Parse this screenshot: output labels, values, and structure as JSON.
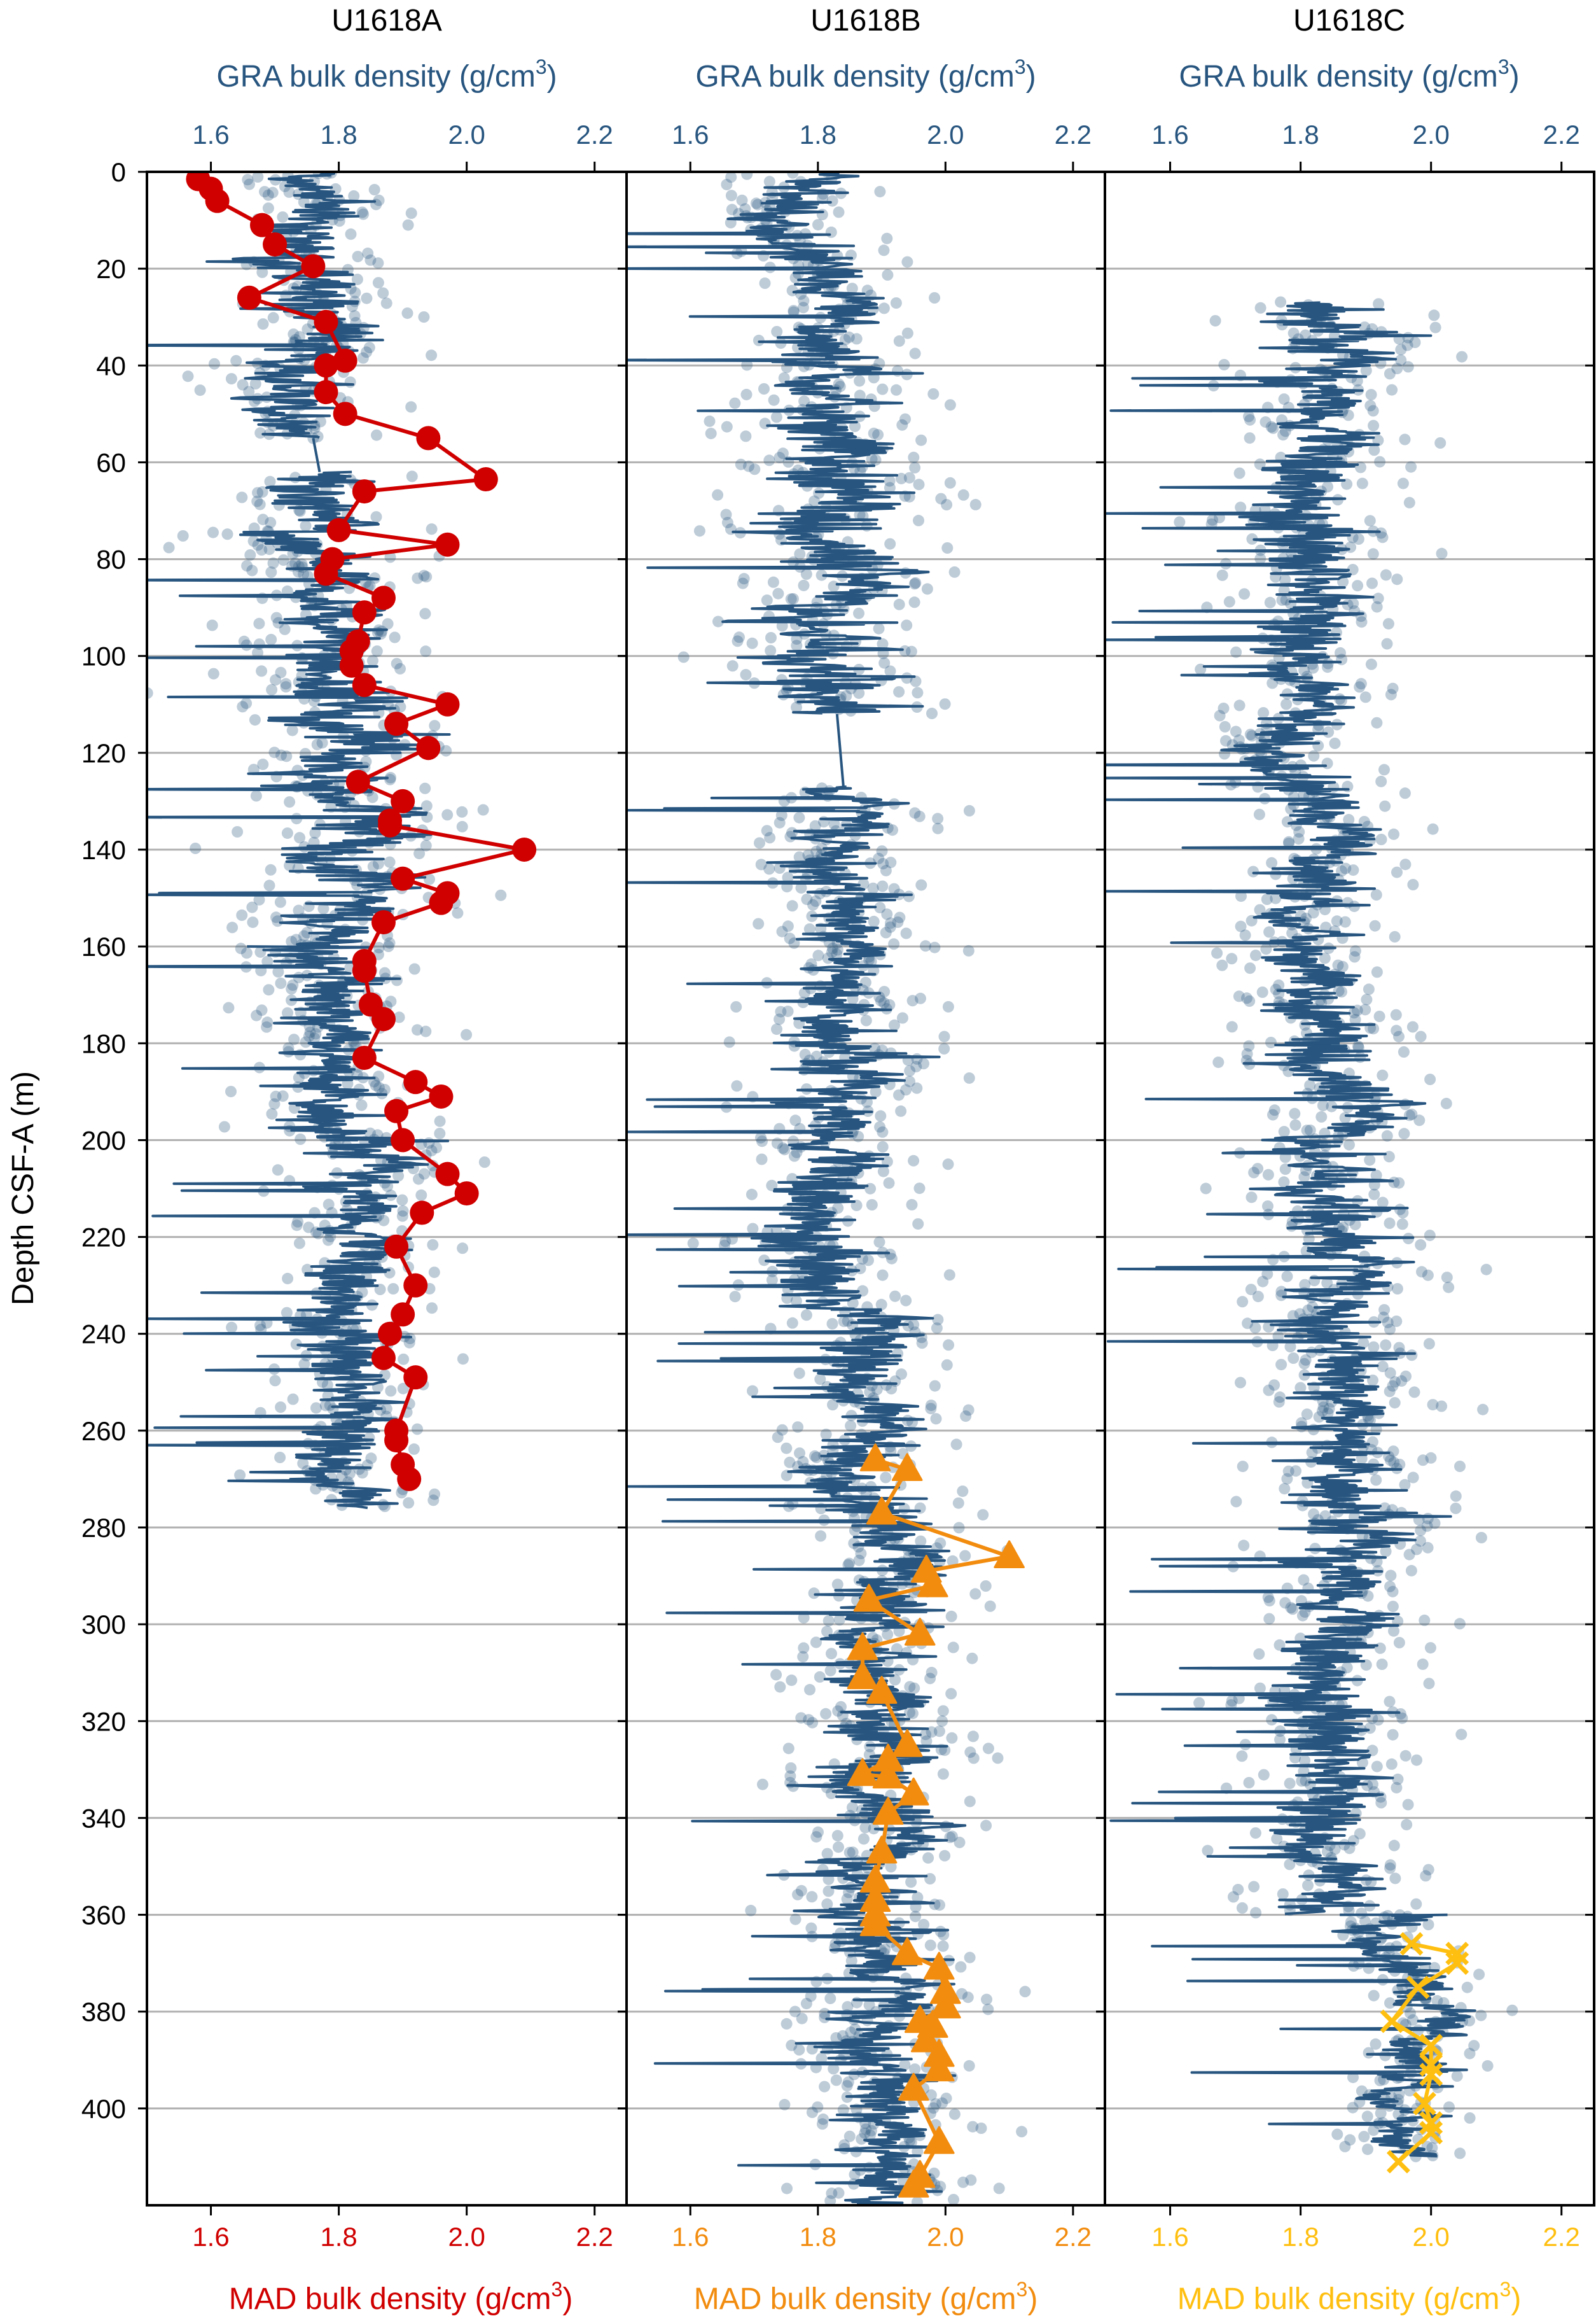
{
  "chart_data": {
    "type": "scatter",
    "ylabel": "Depth CSF-A (m)",
    "ylim": [
      0,
      420
    ],
    "yticks": [
      0,
      20,
      40,
      60,
      80,
      100,
      120,
      140,
      160,
      180,
      200,
      220,
      240,
      260,
      280,
      300,
      320,
      340,
      360,
      380,
      400
    ],
    "ytick_labels": [
      "0",
      "20",
      "40",
      "60",
      "80",
      "100",
      "120",
      "140",
      "160",
      "180",
      "200",
      "220",
      "240",
      "260",
      "280",
      "300",
      "320",
      "340",
      "360",
      "380",
      "400"
    ],
    "y_inverted": true,
    "grid": "horizontal",
    "colors": {
      "gra": "#27557f",
      "mad_a": "#d00000",
      "mad_b": "#f28c0f",
      "mad_c": "#ffbf10",
      "grid": "#b0b0b0"
    },
    "panels": [
      {
        "title": "U1618A",
        "top_xlabel": "GRA bulk density (g/cm",
        "bottom_xlabel": "MAD bulk density (g/cm",
        "unit_sup": "3",
        "unit_close": ")",
        "xlim": [
          1.5,
          2.25
        ],
        "xticks": [
          1.6,
          1.8,
          2.0,
          2.2
        ],
        "xtick_labels": [
          "1.6",
          "1.8",
          "2.0",
          "2.2"
        ],
        "mad_marker": "circle",
        "mad_color_key": "mad_a",
        "gra_intervals": [
          {
            "from": 0,
            "to": 55,
            "mean": 1.76,
            "spread": 0.07
          },
          {
            "from": 62,
            "to": 100,
            "mean": 1.77,
            "spread": 0.08
          },
          {
            "from": 100,
            "to": 160,
            "mean": 1.8,
            "spread": 0.09
          },
          {
            "from": 160,
            "to": 200,
            "mean": 1.78,
            "spread": 0.08
          },
          {
            "from": 200,
            "to": 276,
            "mean": 1.83,
            "spread": 0.07
          }
        ],
        "mad": [
          {
            "depth": 1.5,
            "value": 1.58
          },
          {
            "depth": 3.5,
            "value": 1.6
          },
          {
            "depth": 6,
            "value": 1.61
          },
          {
            "depth": 11,
            "value": 1.68
          },
          {
            "depth": 15,
            "value": 1.7
          },
          {
            "depth": 19.5,
            "value": 1.76
          },
          {
            "depth": 26,
            "value": 1.66
          },
          {
            "depth": 31,
            "value": 1.78
          },
          {
            "depth": 39,
            "value": 1.81
          },
          {
            "depth": 40,
            "value": 1.78
          },
          {
            "depth": 45.5,
            "value": 1.78
          },
          {
            "depth": 50,
            "value": 1.81
          },
          {
            "depth": 55,
            "value": 1.94
          },
          {
            "depth": 63.5,
            "value": 2.03
          },
          {
            "depth": 66,
            "value": 1.84
          },
          {
            "depth": 74,
            "value": 1.8
          },
          {
            "depth": 77,
            "value": 1.97
          },
          {
            "depth": 80,
            "value": 1.79
          },
          {
            "depth": 83,
            "value": 1.78
          },
          {
            "depth": 88,
            "value": 1.87
          },
          {
            "depth": 91,
            "value": 1.84
          },
          {
            "depth": 97,
            "value": 1.83
          },
          {
            "depth": 99,
            "value": 1.82
          },
          {
            "depth": 102,
            "value": 1.82
          },
          {
            "depth": 106,
            "value": 1.84
          },
          {
            "depth": 110,
            "value": 1.97
          },
          {
            "depth": 114,
            "value": 1.89
          },
          {
            "depth": 119,
            "value": 1.94
          },
          {
            "depth": 126,
            "value": 1.83
          },
          {
            "depth": 130,
            "value": 1.9
          },
          {
            "depth": 134,
            "value": 1.88
          },
          {
            "depth": 135,
            "value": 1.88
          },
          {
            "depth": 140,
            "value": 2.09
          },
          {
            "depth": 146,
            "value": 1.9
          },
          {
            "depth": 149,
            "value": 1.97
          },
          {
            "depth": 151,
            "value": 1.96
          },
          {
            "depth": 155,
            "value": 1.87
          },
          {
            "depth": 163,
            "value": 1.84
          },
          {
            "depth": 165,
            "value": 1.84
          },
          {
            "depth": 172,
            "value": 1.85
          },
          {
            "depth": 175,
            "value": 1.87
          },
          {
            "depth": 183,
            "value": 1.84
          },
          {
            "depth": 188,
            "value": 1.92
          },
          {
            "depth": 191,
            "value": 1.96
          },
          {
            "depth": 194,
            "value": 1.89
          },
          {
            "depth": 200,
            "value": 1.9
          },
          {
            "depth": 207,
            "value": 1.97
          },
          {
            "depth": 211,
            "value": 2.0
          },
          {
            "depth": 215,
            "value": 1.93
          },
          {
            "depth": 222,
            "value": 1.89
          },
          {
            "depth": 230,
            "value": 1.92
          },
          {
            "depth": 236,
            "value": 1.9
          },
          {
            "depth": 240,
            "value": 1.88
          },
          {
            "depth": 245,
            "value": 1.87
          },
          {
            "depth": 249,
            "value": 1.92
          },
          {
            "depth": 260,
            "value": 1.89
          },
          {
            "depth": 262,
            "value": 1.89
          },
          {
            "depth": 267,
            "value": 1.9
          },
          {
            "depth": 270,
            "value": 1.91
          }
        ]
      },
      {
        "title": "U1618B",
        "top_xlabel": "GRA bulk density (g/cm",
        "bottom_xlabel": "MAD bulk density (g/cm",
        "unit_sup": "3",
        "unit_close": ")",
        "xlim": [
          1.5,
          2.25
        ],
        "xticks": [
          1.6,
          1.8,
          2.0,
          2.2
        ],
        "xtick_labels": [
          "1.6",
          "1.8",
          "2.0",
          "2.2"
        ],
        "mad_marker": "triangle",
        "mad_color_key": "mad_b",
        "gra_intervals": [
          {
            "from": 0,
            "to": 40,
            "mean": 1.8,
            "spread": 0.07
          },
          {
            "from": 40,
            "to": 112,
            "mean": 1.83,
            "spread": 0.1
          },
          {
            "from": 127,
            "to": 165,
            "mean": 1.84,
            "spread": 0.07
          },
          {
            "from": 165,
            "to": 235,
            "mean": 1.82,
            "spread": 0.08
          },
          {
            "from": 235,
            "to": 420,
            "mean": 1.9,
            "spread": 0.08
          }
        ],
        "mad": [
          {
            "depth": 266,
            "value": 1.89
          },
          {
            "depth": 268,
            "value": 1.94
          },
          {
            "depth": 277,
            "value": 1.9
          },
          {
            "depth": 286,
            "value": 2.1
          },
          {
            "depth": 289,
            "value": 1.97
          },
          {
            "depth": 292,
            "value": 1.98
          },
          {
            "depth": 295,
            "value": 1.88
          },
          {
            "depth": 302,
            "value": 1.96
          },
          {
            "depth": 305,
            "value": 1.87
          },
          {
            "depth": 311,
            "value": 1.87
          },
          {
            "depth": 314,
            "value": 1.9
          },
          {
            "depth": 325,
            "value": 1.94
          },
          {
            "depth": 328,
            "value": 1.91
          },
          {
            "depth": 331,
            "value": 1.87
          },
          {
            "depth": 331.5,
            "value": 1.91
          },
          {
            "depth": 335,
            "value": 1.95
          },
          {
            "depth": 339,
            "value": 1.91
          },
          {
            "depth": 347,
            "value": 1.9
          },
          {
            "depth": 353,
            "value": 1.89
          },
          {
            "depth": 357,
            "value": 1.89
          },
          {
            "depth": 360,
            "value": 1.89
          },
          {
            "depth": 362,
            "value": 1.89
          },
          {
            "depth": 368,
            "value": 1.94
          },
          {
            "depth": 371,
            "value": 1.99
          },
          {
            "depth": 376,
            "value": 2.0
          },
          {
            "depth": 379,
            "value": 2.0
          },
          {
            "depth": 382,
            "value": 1.96
          },
          {
            "depth": 383,
            "value": 1.98
          },
          {
            "depth": 386,
            "value": 1.97
          },
          {
            "depth": 389,
            "value": 1.99
          },
          {
            "depth": 392,
            "value": 1.99
          },
          {
            "depth": 396,
            "value": 1.95
          },
          {
            "depth": 407,
            "value": 1.99
          },
          {
            "depth": 414,
            "value": 1.96
          },
          {
            "depth": 416,
            "value": 1.95
          }
        ]
      },
      {
        "title": "U1618C",
        "top_xlabel": "GRA bulk density (g/cm",
        "bottom_xlabel": "MAD bulk density (g/cm",
        "unit_sup": "3",
        "unit_close": ")",
        "xlim": [
          1.5,
          2.25
        ],
        "xticks": [
          1.6,
          1.8,
          2.0,
          2.2
        ],
        "xtick_labels": [
          "1.6",
          "1.8",
          "2.0",
          "2.2"
        ],
        "mad_marker": "x",
        "mad_color_key": "mad_c",
        "gra_intervals": [
          {
            "from": 27,
            "to": 100,
            "mean": 1.83,
            "spread": 0.08
          },
          {
            "from": 100,
            "to": 180,
            "mean": 1.82,
            "spread": 0.07
          },
          {
            "from": 180,
            "to": 360,
            "mean": 1.86,
            "spread": 0.08
          },
          {
            "from": 360,
            "to": 410,
            "mean": 1.97,
            "spread": 0.05
          }
        ],
        "mad": [
          {
            "depth": 366,
            "value": 1.97
          },
          {
            "depth": 368,
            "value": 2.04
          },
          {
            "depth": 370,
            "value": 2.04
          },
          {
            "depth": 375,
            "value": 1.98
          },
          {
            "depth": 382,
            "value": 1.94
          },
          {
            "depth": 387,
            "value": 2.0
          },
          {
            "depth": 391,
            "value": 2.0
          },
          {
            "depth": 393,
            "value": 2.0
          },
          {
            "depth": 399,
            "value": 1.99
          },
          {
            "depth": 403,
            "value": 2.0
          },
          {
            "depth": 405,
            "value": 2.0
          },
          {
            "depth": 411,
            "value": 1.95
          }
        ]
      }
    ]
  }
}
